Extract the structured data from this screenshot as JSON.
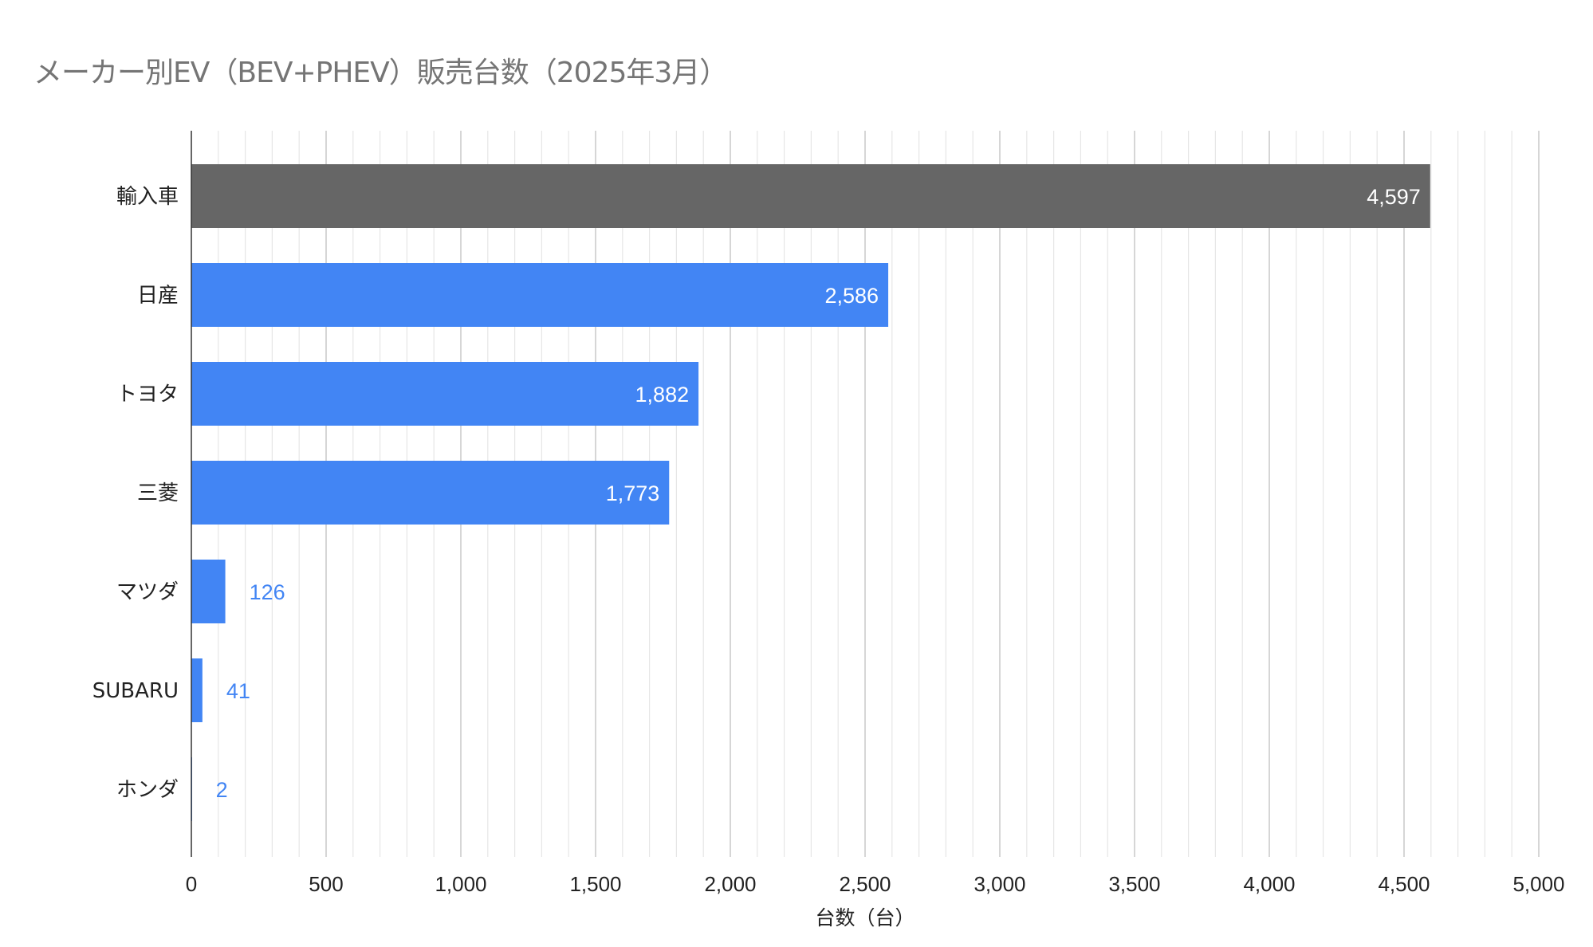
{
  "chart_data": {
    "type": "bar",
    "orientation": "horizontal",
    "title": "メーカー別EV（BEV+PHEV）販売台数（2025年3月）",
    "xlabel": "台数（台）",
    "ylabel": "",
    "categories": [
      "輸入車",
      "日産",
      "トヨタ",
      "三菱",
      "マツダ",
      "SUBARU",
      "ホンダ"
    ],
    "values": [
      4597,
      2586,
      1882,
      1773,
      126,
      41,
      2
    ],
    "data_labels": [
      "4,597",
      "2,586",
      "1,882",
      "1,773",
      "126",
      "41",
      "2"
    ],
    "bar_colors": [
      "#666666",
      "#4285f4",
      "#4285f4",
      "#4285f4",
      "#4285f4",
      "#4285f4",
      "#4285f4"
    ],
    "xlim": [
      0,
      5000
    ],
    "x_ticks": [
      0,
      500,
      1000,
      1500,
      2000,
      2500,
      3000,
      3500,
      4000,
      4500,
      5000
    ],
    "x_tick_labels": [
      "0",
      "500",
      "1,000",
      "1,500",
      "2,000",
      "2,500",
      "3,000",
      "3,500",
      "4,000",
      "4,500",
      "5,000"
    ],
    "minor_grid_step": 100,
    "grid": true,
    "legend": "none"
  }
}
